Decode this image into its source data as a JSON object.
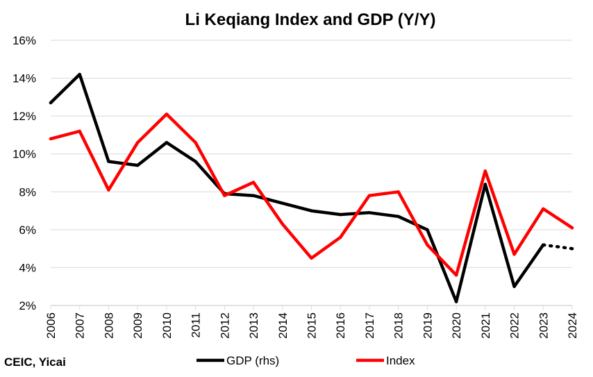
{
  "chart_data": {
    "type": "line",
    "title": "Li Keqiang Index and GDP (Y/Y)",
    "source": "CEIC, Yicai",
    "categories": [
      "2006",
      "2007",
      "2008",
      "2009",
      "2010",
      "2011",
      "2012",
      "2013",
      "2014",
      "2015",
      "2016",
      "2017",
      "2018",
      "2019",
      "2020",
      "2021",
      "2022",
      "2023",
      "2024"
    ],
    "ylim": [
      2,
      16
    ],
    "yticks": [
      2,
      4,
      6,
      8,
      10,
      12,
      14,
      16
    ],
    "ytick_labels": [
      "2%",
      "4%",
      "6%",
      "8%",
      "10%",
      "12%",
      "14%",
      "16%"
    ],
    "grid": true,
    "legend_position": "bottom",
    "series": [
      {
        "name": "GDP (rhs)",
        "color": "#000000",
        "values": [
          12.7,
          14.2,
          9.6,
          9.4,
          10.6,
          9.6,
          7.9,
          7.8,
          7.4,
          7.0,
          6.8,
          6.9,
          6.7,
          6.0,
          2.2,
          8.4,
          3.0,
          5.2,
          5.0
        ],
        "dotted_from_index": 17
      },
      {
        "name": "Index",
        "color": "#ff0000",
        "values": [
          10.8,
          11.2,
          8.1,
          10.6,
          12.1,
          10.6,
          7.8,
          8.5,
          6.3,
          4.5,
          5.6,
          7.8,
          8.0,
          5.2,
          3.6,
          9.1,
          4.7,
          7.1,
          6.1
        ]
      }
    ]
  }
}
